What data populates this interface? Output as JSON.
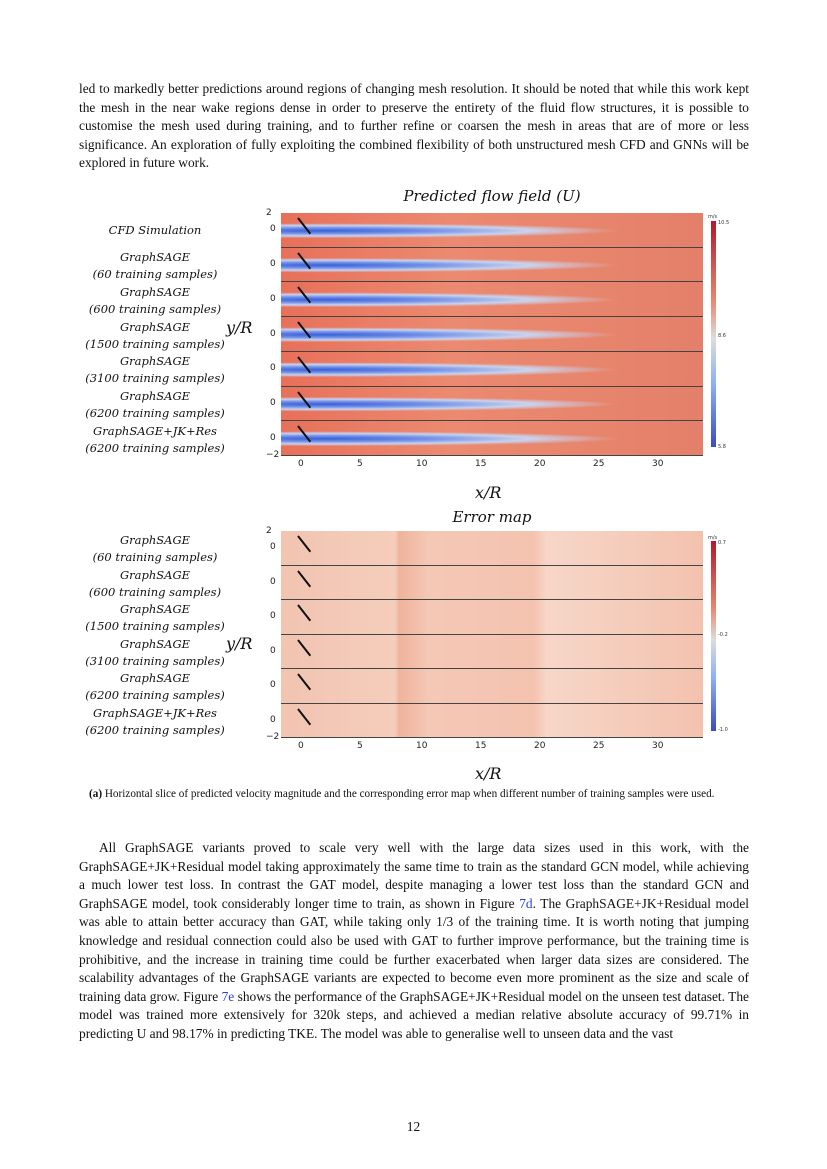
{
  "top_paragraph": "led to markedly better predictions around regions of changing mesh resolution. It should be noted that while this work kept the mesh in the near wake regions dense in order to preserve the entirety of the fluid flow structures, it is possible to customise the mesh used during training, and to further refine or coarsen the mesh in areas that are of more or less significance. An exploration of fully exploiting the combined flexibility of both unstructured mesh CFD and GNNs will be explored in future work.",
  "figure": {
    "top": {
      "title": "Predicted flow field (U)",
      "rows": [
        "CFD Simulation",
        "GraphSAGE\n(60 training samples)",
        "GraphSAGE\n(600 training samples)",
        "GraphSAGE\n(1500 training samples)",
        "GraphSAGE\n(3100 training samples)",
        "GraphSAGE\n(6200 training samples)",
        "GraphSAGE+JK+Res\n(6200 training samples)"
      ],
      "colorbar": {
        "unit": "m/s",
        "max": "10.5",
        "mid": "8.6",
        "min": "5.8"
      }
    },
    "bottom": {
      "title": "Error map",
      "rows": [
        "GraphSAGE\n(60 training samples)",
        "GraphSAGE\n(600 training samples)",
        "GraphSAGE\n(1500 training samples)",
        "GraphSAGE\n(3100 training samples)",
        "GraphSAGE\n(6200 training samples)",
        "GraphSAGE+JK+Res\n(6200 training samples)"
      ],
      "colorbar": {
        "unit": "m/s",
        "max": "0.7",
        "mid": "-0.2",
        "min": "-1.0"
      }
    },
    "xlabel": "x/R",
    "ylabel": "y/R",
    "xticks": [
      "0",
      "5",
      "10",
      "15",
      "20",
      "25",
      "30"
    ],
    "yticks": {
      "top": "2",
      "zero": "0",
      "bottom": "−2"
    },
    "colors": {
      "high": "#b2182b",
      "mid": "#dddddd",
      "low": "#3b4cc0"
    },
    "caption_label": "(a)",
    "caption": "Horizontal slice of predicted velocity magnitude and the corresponding error map when different number of training samples were used."
  },
  "body": {
    "p1": "All GraphSAGE variants proved to scale very well with the large data sizes used in this work, with the GraphSAGE+JK+Residual model taking approximately the same time to train as the standard GCN model, while achieving a much lower test loss. In contrast the GAT model, despite managing a lower test loss than the standard GCN and GraphSAGE model, took considerably longer time to train, as shown in Figure ",
    "ref1": "7d",
    "p2": ". The GraphSAGE+JK+Residual model was able to attain better accuracy than GAT, while taking only 1/3 of the training time.  It is worth noting that jumping knowledge and residual connection could also be used with GAT to further improve performance, but the training time is prohibitive, and the increase in training time could be further exacerbated when larger data sizes are considered. The scalability advantages of the GraphSAGE variants are expected to become even more prominent as the size and scale of training data grow.  Figure ",
    "ref2": "7e",
    "p3": " shows the performance of the GraphSAGE+JK+Residual model on the unseen test dataset.  The model was trained more extensively for 320k steps, and achieved a median relative absolute accuracy of 99.71% in predicting U and 98.17% in predicting TKE. The model was able to generalise well to unseen data and the vast"
  },
  "page_number": "12"
}
